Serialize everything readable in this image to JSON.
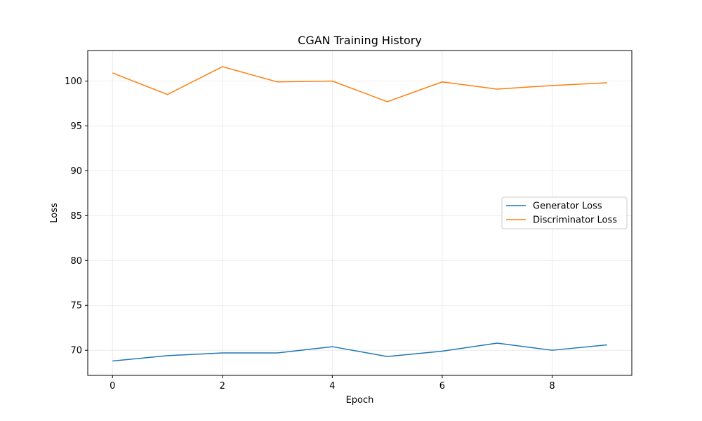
{
  "chart_data": {
    "type": "line",
    "title": "CGAN Training History",
    "xlabel": "Epoch",
    "ylabel": "Loss",
    "x": [
      0,
      1,
      2,
      3,
      4,
      5,
      6,
      7,
      8,
      9
    ],
    "xlim": [
      -0.45,
      9.45
    ],
    "ylim": [
      67.2,
      103.4
    ],
    "xticks": [
      0,
      2,
      4,
      6,
      8
    ],
    "yticks": [
      70,
      75,
      80,
      85,
      90,
      95,
      100
    ],
    "grid": true,
    "legend_position": "center-right",
    "series": [
      {
        "name": "Generator Loss",
        "color": "#1f77b4",
        "values": [
          68.8,
          69.4,
          69.7,
          69.7,
          70.4,
          69.3,
          69.9,
          70.8,
          70.0,
          70.6
        ]
      },
      {
        "name": "Discriminator Loss",
        "color": "#ff7f0e",
        "values": [
          100.9,
          98.5,
          101.6,
          99.9,
          100.0,
          97.7,
          99.9,
          99.1,
          99.5,
          99.8
        ]
      }
    ]
  }
}
